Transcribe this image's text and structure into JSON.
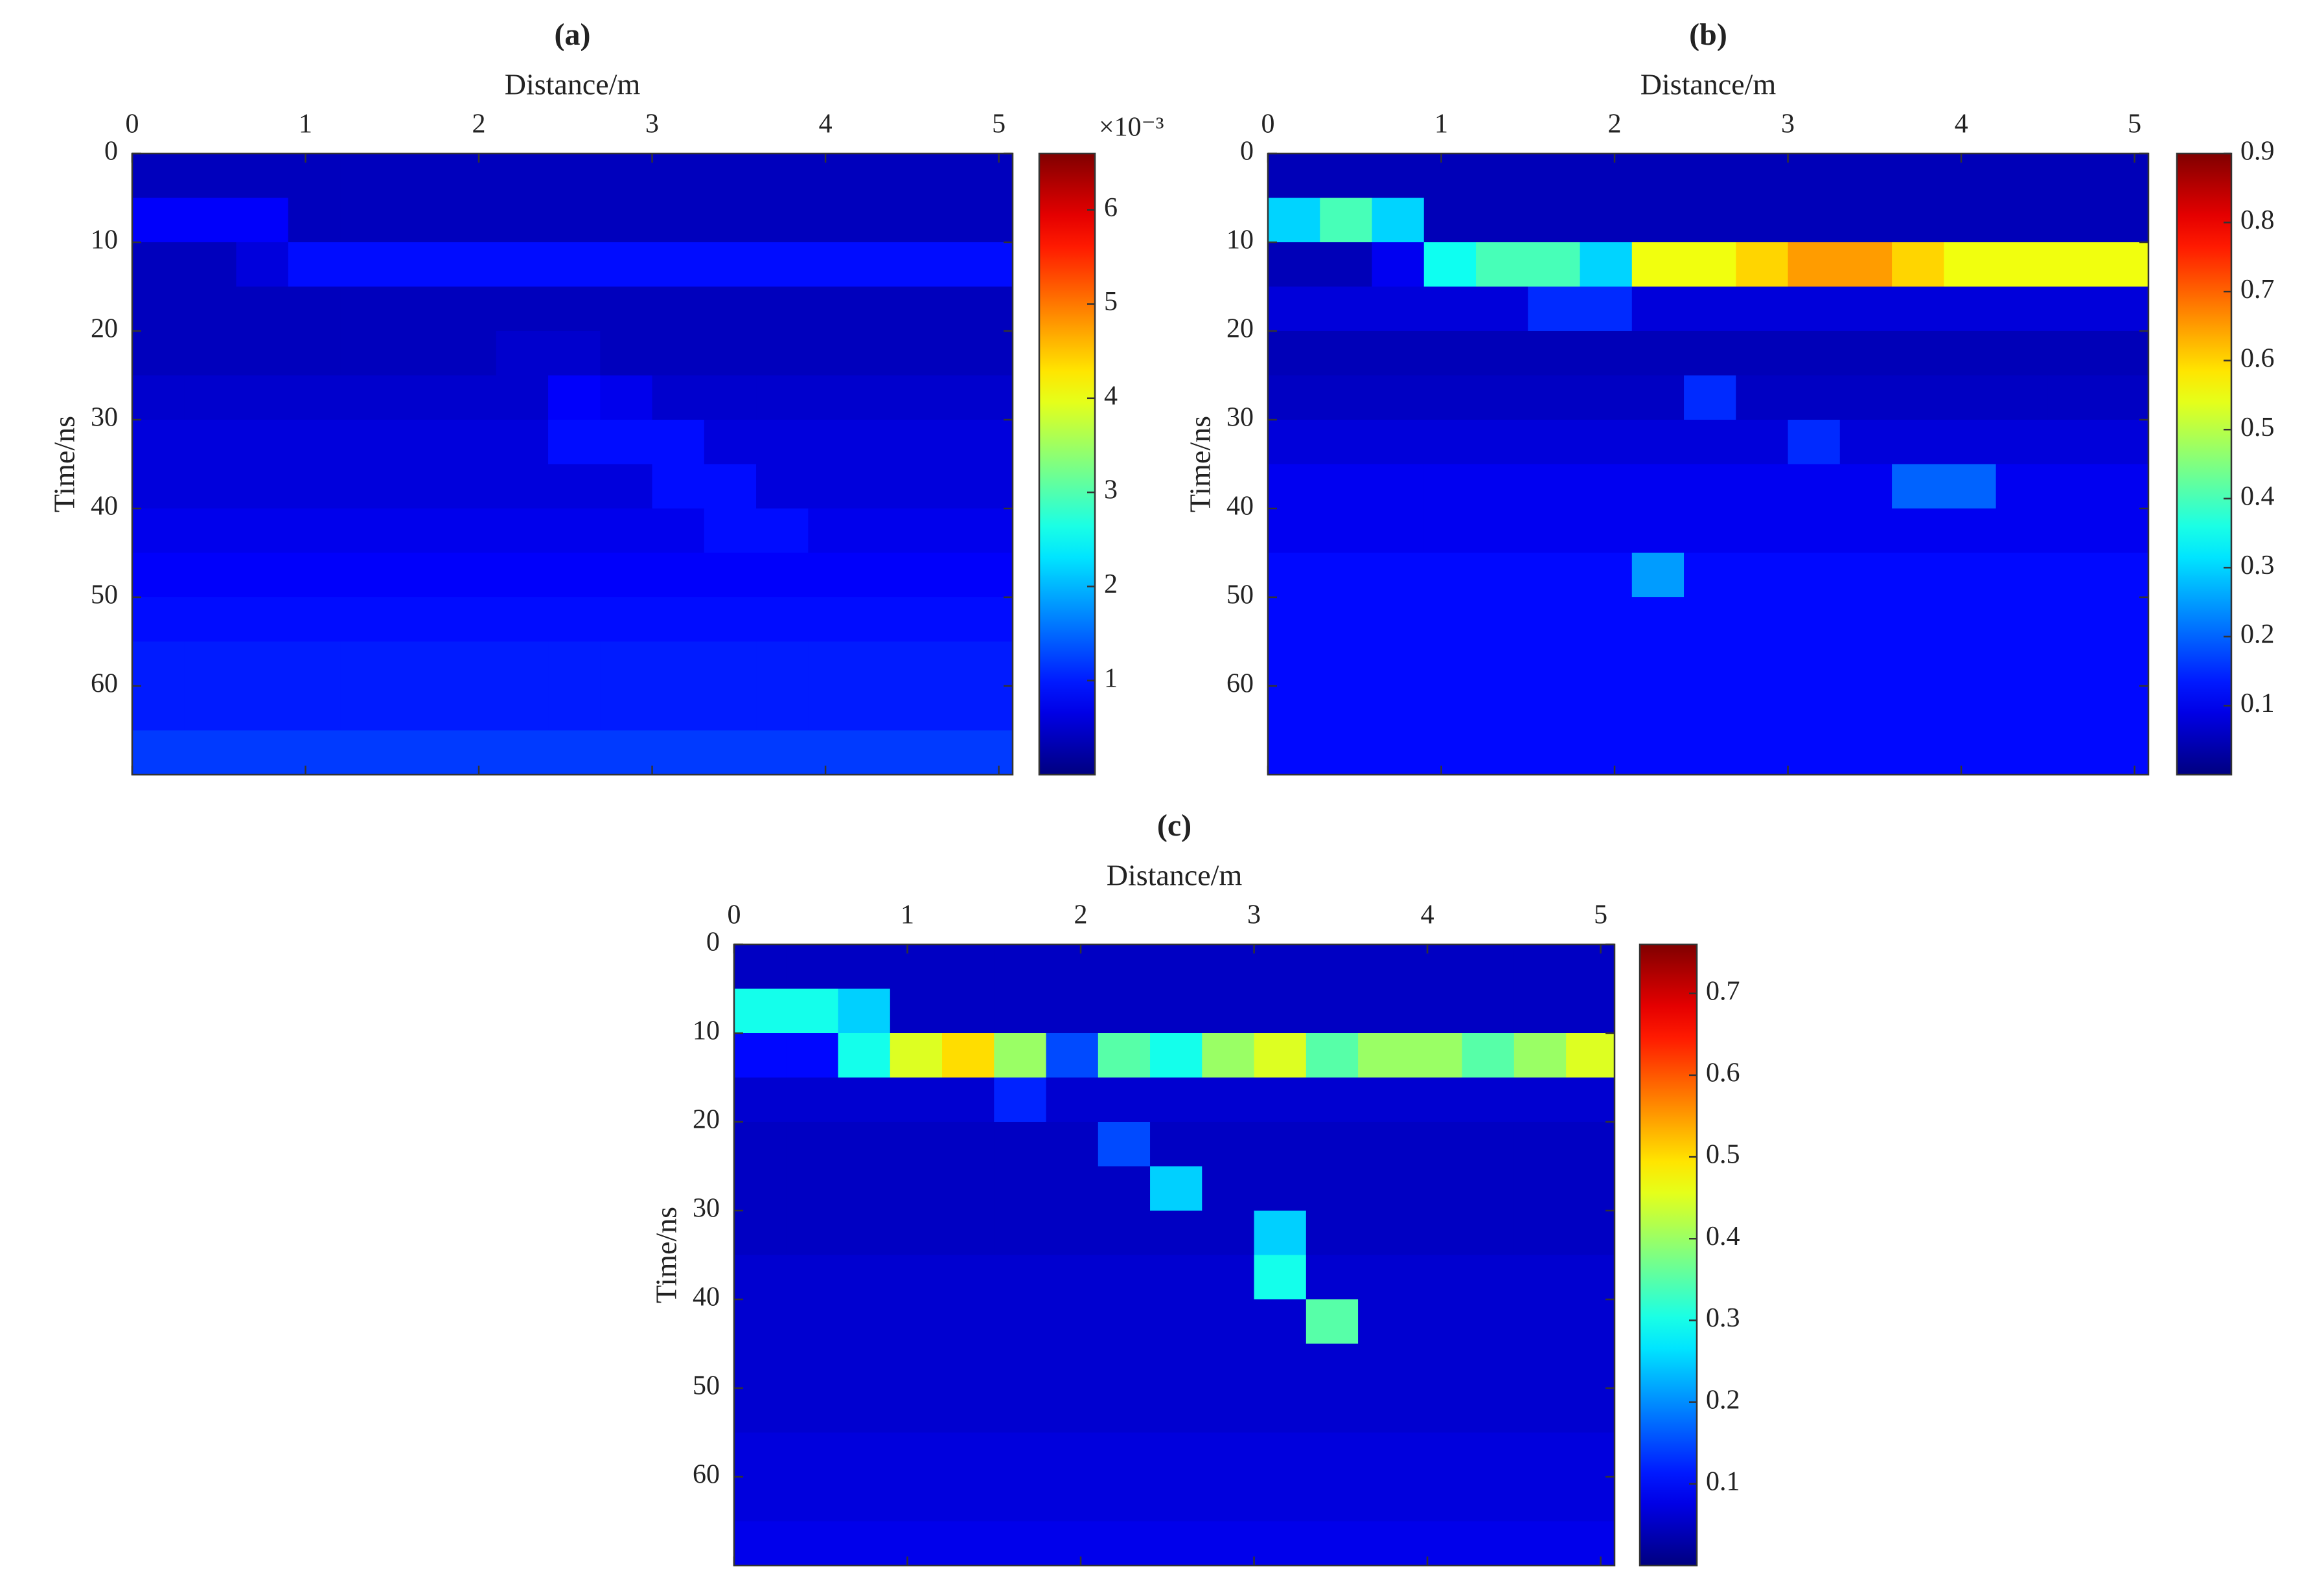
{
  "chart_data": [
    {
      "type": "heatmap",
      "title": "(a)",
      "xlabel": "Distance/m",
      "ylabel": "Time/ns",
      "colormap": "jet",
      "y_inverted": true,
      "x": [
        0.15,
        0.45,
        0.75,
        1.05,
        1.35,
        1.65,
        1.95,
        2.25,
        2.55,
        2.85,
        3.15,
        3.45,
        3.75,
        4.05,
        4.35,
        4.65,
        4.95
      ],
      "y": [
        2.5,
        7.5,
        12.5,
        17.5,
        22.5,
        27.5,
        32.5,
        37.5,
        42.5,
        47.5,
        52.5,
        57.5,
        62.5,
        67.5
      ],
      "z": [
        [
          0.0004,
          0.0004,
          0.0004,
          0.0004,
          0.0004,
          0.0004,
          0.0004,
          0.0004,
          0.0004,
          0.0004,
          0.0004,
          0.0004,
          0.0004,
          0.0004,
          0.0004,
          0.0004,
          0.0004
        ],
        [
          0.0008,
          0.0008,
          0.0008,
          0.0004,
          0.0004,
          0.0004,
          0.0004,
          0.0004,
          0.0004,
          0.0004,
          0.0004,
          0.0004,
          0.0004,
          0.0004,
          0.0004,
          0.0004,
          0.0004
        ],
        [
          0.0004,
          0.0004,
          0.0006,
          0.0009,
          0.0009,
          0.0009,
          0.0009,
          0.0009,
          0.0009,
          0.0009,
          0.0009,
          0.0009,
          0.0009,
          0.0009,
          0.0009,
          0.0009,
          0.0009
        ],
        [
          0.0004,
          0.0004,
          0.0004,
          0.0004,
          0.0004,
          0.0004,
          0.0004,
          0.0004,
          0.0004,
          0.0004,
          0.0004,
          0.0004,
          0.0004,
          0.0004,
          0.0004,
          0.0004,
          0.0004
        ],
        [
          0.0004,
          0.0004,
          0.0004,
          0.0004,
          0.0004,
          0.0004,
          0.0004,
          0.0005,
          0.0005,
          0.0004,
          0.0004,
          0.0004,
          0.0004,
          0.0004,
          0.0004,
          0.0004,
          0.0004
        ],
        [
          0.0005,
          0.0005,
          0.0005,
          0.0005,
          0.0005,
          0.0005,
          0.0005,
          0.0005,
          0.0008,
          0.0007,
          0.0005,
          0.0005,
          0.0005,
          0.0005,
          0.0005,
          0.0005,
          0.0005
        ],
        [
          0.0006,
          0.0006,
          0.0006,
          0.0006,
          0.0006,
          0.0006,
          0.0006,
          0.0006,
          0.0009,
          0.0009,
          0.0009,
          0.0006,
          0.0006,
          0.0006,
          0.0006,
          0.0006,
          0.0006
        ],
        [
          0.0006,
          0.0006,
          0.0006,
          0.0006,
          0.0006,
          0.0006,
          0.0006,
          0.0006,
          0.0006,
          0.0006,
          0.0009,
          0.0009,
          0.0006,
          0.0006,
          0.0006,
          0.0006,
          0.0006
        ],
        [
          0.0007,
          0.0007,
          0.0007,
          0.0007,
          0.0007,
          0.0007,
          0.0007,
          0.0007,
          0.0007,
          0.0007,
          0.0007,
          0.0009,
          0.0009,
          0.0007,
          0.0007,
          0.0007,
          0.0007
        ],
        [
          0.0008,
          0.0008,
          0.0008,
          0.0008,
          0.0008,
          0.0008,
          0.0008,
          0.0008,
          0.0008,
          0.0008,
          0.0008,
          0.0008,
          0.0008,
          0.0008,
          0.0008,
          0.0008,
          0.0008
        ],
        [
          0.0009,
          0.0009,
          0.0009,
          0.0009,
          0.0009,
          0.0009,
          0.0009,
          0.0009,
          0.0009,
          0.0009,
          0.0009,
          0.0009,
          0.0009,
          0.0009,
          0.0009,
          0.0009,
          0.0009
        ],
        [
          0.001,
          0.001,
          0.001,
          0.001,
          0.001,
          0.001,
          0.001,
          0.001,
          0.001,
          0.001,
          0.001,
          0.001,
          0.001,
          0.001,
          0.001,
          0.001,
          0.001
        ],
        [
          0.001,
          0.001,
          0.001,
          0.001,
          0.001,
          0.001,
          0.001,
          0.001,
          0.001,
          0.001,
          0.001,
          0.001,
          0.001,
          0.001,
          0.001,
          0.001,
          0.001
        ],
        [
          0.0012,
          0.0012,
          0.0012,
          0.0012,
          0.0012,
          0.0012,
          0.0012,
          0.0012,
          0.0012,
          0.0012,
          0.0012,
          0.0012,
          0.0012,
          0.0012,
          0.0012,
          0.0012,
          0.0012
        ]
      ],
      "xlim": [
        0,
        5.08
      ],
      "ylim": [
        0,
        70
      ],
      "xticks": [
        0,
        1,
        2,
        3,
        4,
        5
      ],
      "yticks": [
        0,
        10,
        20,
        30,
        40,
        50,
        60
      ],
      "clim": [
        0,
        0.0066
      ],
      "colorbar_exponent": "×10⁻³",
      "cticks": [
        {
          "value": 0.001,
          "label": "1"
        },
        {
          "value": 0.002,
          "label": "2"
        },
        {
          "value": 0.003,
          "label": "3"
        },
        {
          "value": 0.004,
          "label": "4"
        },
        {
          "value": 0.005,
          "label": "5"
        },
        {
          "value": 0.006,
          "label": "6"
        }
      ]
    },
    {
      "type": "heatmap",
      "title": "(b)",
      "xlabel": "Distance/m",
      "ylabel": "Time/ns",
      "colormap": "jet",
      "y_inverted": true,
      "x": [
        0.15,
        0.45,
        0.75,
        1.05,
        1.35,
        1.65,
        1.95,
        2.25,
        2.55,
        2.85,
        3.15,
        3.45,
        3.75,
        4.05,
        4.35,
        4.65,
        4.95
      ],
      "y": [
        2.5,
        7.5,
        12.5,
        17.5,
        22.5,
        27.5,
        32.5,
        37.5,
        42.5,
        47.5,
        52.5,
        57.5,
        62.5,
        67.5
      ],
      "z": [
        [
          0.05,
          0.05,
          0.05,
          0.05,
          0.05,
          0.05,
          0.05,
          0.05,
          0.05,
          0.05,
          0.05,
          0.05,
          0.05,
          0.05,
          0.05,
          0.05,
          0.05
        ],
        [
          0.3,
          0.4,
          0.3,
          0.05,
          0.05,
          0.05,
          0.05,
          0.05,
          0.05,
          0.05,
          0.05,
          0.05,
          0.05,
          0.05,
          0.05,
          0.05,
          0.05
        ],
        [
          0.05,
          0.05,
          0.1,
          0.35,
          0.4,
          0.4,
          0.3,
          0.55,
          0.55,
          0.6,
          0.65,
          0.65,
          0.6,
          0.55,
          0.55,
          0.55,
          0.55
        ],
        [
          0.08,
          0.08,
          0.08,
          0.08,
          0.08,
          0.15,
          0.15,
          0.08,
          0.08,
          0.08,
          0.08,
          0.08,
          0.08,
          0.08,
          0.08,
          0.08,
          0.08
        ],
        [
          0.05,
          0.05,
          0.05,
          0.05,
          0.05,
          0.05,
          0.05,
          0.05,
          0.05,
          0.05,
          0.05,
          0.05,
          0.05,
          0.05,
          0.05,
          0.05,
          0.05
        ],
        [
          0.06,
          0.06,
          0.06,
          0.06,
          0.06,
          0.06,
          0.06,
          0.06,
          0.15,
          0.06,
          0.06,
          0.06,
          0.06,
          0.06,
          0.06,
          0.06,
          0.06
        ],
        [
          0.08,
          0.08,
          0.08,
          0.08,
          0.08,
          0.08,
          0.08,
          0.08,
          0.08,
          0.08,
          0.15,
          0.08,
          0.08,
          0.08,
          0.08,
          0.08,
          0.08
        ],
        [
          0.1,
          0.1,
          0.1,
          0.1,
          0.1,
          0.1,
          0.1,
          0.1,
          0.1,
          0.1,
          0.1,
          0.1,
          0.2,
          0.2,
          0.1,
          0.1,
          0.1
        ],
        [
          0.1,
          0.1,
          0.1,
          0.1,
          0.1,
          0.1,
          0.1,
          0.1,
          0.1,
          0.1,
          0.1,
          0.1,
          0.1,
          0.1,
          0.1,
          0.1,
          0.1
        ],
        [
          0.12,
          0.12,
          0.12,
          0.12,
          0.12,
          0.12,
          0.12,
          0.25,
          0.12,
          0.12,
          0.12,
          0.12,
          0.12,
          0.12,
          0.12,
          0.12,
          0.12
        ],
        [
          0.12,
          0.12,
          0.12,
          0.12,
          0.12,
          0.12,
          0.12,
          0.12,
          0.12,
          0.12,
          0.12,
          0.12,
          0.12,
          0.12,
          0.12,
          0.12,
          0.12
        ],
        [
          0.12,
          0.12,
          0.12,
          0.12,
          0.12,
          0.12,
          0.12,
          0.12,
          0.12,
          0.12,
          0.12,
          0.12,
          0.12,
          0.12,
          0.12,
          0.12,
          0.12
        ],
        [
          0.12,
          0.12,
          0.12,
          0.12,
          0.12,
          0.12,
          0.12,
          0.12,
          0.12,
          0.12,
          0.12,
          0.12,
          0.12,
          0.12,
          0.12,
          0.12,
          0.12
        ],
        [
          0.12,
          0.12,
          0.12,
          0.12,
          0.12,
          0.12,
          0.12,
          0.12,
          0.12,
          0.12,
          0.12,
          0.12,
          0.12,
          0.12,
          0.12,
          0.12,
          0.12
        ]
      ],
      "xlim": [
        0,
        5.08
      ],
      "ylim": [
        0,
        70
      ],
      "xticks": [
        0,
        1,
        2,
        3,
        4,
        5
      ],
      "yticks": [
        0,
        10,
        20,
        30,
        40,
        50,
        60
      ],
      "clim": [
        0,
        0.9
      ],
      "cticks": [
        0.1,
        0.2,
        0.3,
        0.4,
        0.5,
        0.6,
        0.7,
        0.8,
        0.9
      ]
    },
    {
      "type": "heatmap",
      "title": "(c)",
      "xlabel": "Distance/m",
      "ylabel": "Time/ns",
      "colormap": "jet",
      "y_inverted": true,
      "x": [
        0.15,
        0.45,
        0.75,
        1.05,
        1.35,
        1.65,
        1.95,
        2.25,
        2.55,
        2.85,
        3.15,
        3.45,
        3.75,
        4.05,
        4.35,
        4.65,
        4.95
      ],
      "y": [
        2.5,
        7.5,
        12.5,
        17.5,
        22.5,
        27.5,
        32.5,
        37.5,
        42.5,
        47.5,
        52.5,
        57.5,
        62.5,
        67.5
      ],
      "z": [
        [
          0.05,
          0.05,
          0.05,
          0.05,
          0.05,
          0.05,
          0.05,
          0.05,
          0.05,
          0.05,
          0.05,
          0.05,
          0.05,
          0.05,
          0.05,
          0.05,
          0.05
        ],
        [
          0.3,
          0.3,
          0.25,
          0.05,
          0.05,
          0.05,
          0.05,
          0.05,
          0.05,
          0.05,
          0.05,
          0.05,
          0.05,
          0.05,
          0.05,
          0.05,
          0.05
        ],
        [
          0.1,
          0.1,
          0.3,
          0.45,
          0.5,
          0.4,
          0.15,
          0.35,
          0.3,
          0.4,
          0.45,
          0.35,
          0.4,
          0.4,
          0.35,
          0.4,
          0.45
        ],
        [
          0.06,
          0.06,
          0.06,
          0.06,
          0.06,
          0.12,
          0.06,
          0.06,
          0.06,
          0.06,
          0.06,
          0.06,
          0.06,
          0.06,
          0.06,
          0.06,
          0.06
        ],
        [
          0.05,
          0.05,
          0.05,
          0.05,
          0.05,
          0.05,
          0.05,
          0.15,
          0.05,
          0.05,
          0.05,
          0.05,
          0.05,
          0.05,
          0.05,
          0.05,
          0.05
        ],
        [
          0.05,
          0.05,
          0.05,
          0.05,
          0.05,
          0.05,
          0.05,
          0.05,
          0.25,
          0.05,
          0.05,
          0.05,
          0.05,
          0.05,
          0.05,
          0.05,
          0.05
        ],
        [
          0.05,
          0.05,
          0.05,
          0.05,
          0.05,
          0.05,
          0.05,
          0.05,
          0.05,
          0.05,
          0.25,
          0.05,
          0.05,
          0.05,
          0.05,
          0.05,
          0.05
        ],
        [
          0.06,
          0.06,
          0.06,
          0.06,
          0.06,
          0.06,
          0.06,
          0.06,
          0.06,
          0.06,
          0.3,
          0.06,
          0.06,
          0.06,
          0.06,
          0.06,
          0.06
        ],
        [
          0.06,
          0.06,
          0.06,
          0.06,
          0.06,
          0.06,
          0.06,
          0.06,
          0.06,
          0.06,
          0.06,
          0.35,
          0.06,
          0.06,
          0.06,
          0.06,
          0.06
        ],
        [
          0.06,
          0.06,
          0.06,
          0.06,
          0.06,
          0.06,
          0.06,
          0.06,
          0.06,
          0.06,
          0.06,
          0.06,
          0.06,
          0.06,
          0.06,
          0.06,
          0.06
        ],
        [
          0.06,
          0.06,
          0.06,
          0.06,
          0.06,
          0.06,
          0.06,
          0.06,
          0.06,
          0.06,
          0.06,
          0.06,
          0.06,
          0.06,
          0.06,
          0.06,
          0.06
        ],
        [
          0.07,
          0.07,
          0.07,
          0.07,
          0.07,
          0.07,
          0.07,
          0.07,
          0.07,
          0.07,
          0.07,
          0.07,
          0.07,
          0.07,
          0.07,
          0.07,
          0.07
        ],
        [
          0.07,
          0.07,
          0.07,
          0.07,
          0.07,
          0.07,
          0.07,
          0.07,
          0.07,
          0.07,
          0.07,
          0.07,
          0.07,
          0.07,
          0.07,
          0.07,
          0.07
        ],
        [
          0.08,
          0.08,
          0.08,
          0.08,
          0.08,
          0.08,
          0.08,
          0.08,
          0.08,
          0.08,
          0.08,
          0.08,
          0.08,
          0.08,
          0.08,
          0.08,
          0.08
        ]
      ],
      "xlim": [
        0,
        5.08
      ],
      "ylim": [
        0,
        70
      ],
      "xticks": [
        0,
        1,
        2,
        3,
        4,
        5
      ],
      "yticks": [
        0,
        10,
        20,
        30,
        40,
        50,
        60
      ],
      "clim": [
        0,
        0.76
      ],
      "cticks": [
        0.1,
        0.2,
        0.3,
        0.4,
        0.5,
        0.6,
        0.7
      ]
    }
  ]
}
